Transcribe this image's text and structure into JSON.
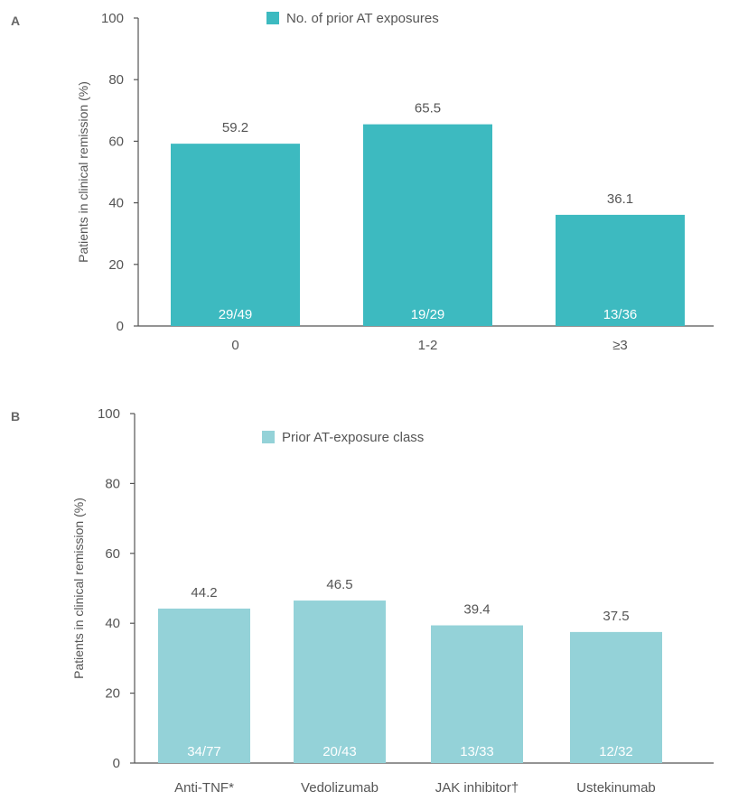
{
  "chart_data": [
    {
      "type": "bar",
      "panel_label": "A",
      "legend": "No. of prior AT exposures",
      "legend_placement": "top",
      "color": "#3dbac0",
      "ylabel": "Patients in clinical remission (%)",
      "xlabel": "",
      "ylim": [
        0,
        100
      ],
      "yticks": [
        0,
        20,
        40,
        60,
        80,
        100
      ],
      "categories": [
        "0",
        "1-2",
        "≥3"
      ],
      "values": [
        59.2,
        65.5,
        36.1
      ],
      "value_labels": [
        "59.2",
        "65.5",
        "36.1"
      ],
      "counts": [
        "29/49",
        "19/29",
        "13/36"
      ],
      "grid": false
    },
    {
      "type": "bar",
      "panel_label": "B",
      "legend": "Prior AT-exposure class",
      "legend_placement": "top",
      "color": "#94d2d8",
      "ylabel": "Patients in clinical remission (%)",
      "xlabel": "",
      "ylim": [
        0,
        100
      ],
      "yticks": [
        0,
        20,
        40,
        60,
        80,
        100
      ],
      "categories": [
        "Anti-TNF*",
        "Vedolizumab",
        "JAK inhibitor†",
        "Ustekinumab"
      ],
      "values": [
        44.2,
        46.5,
        39.4,
        37.5
      ],
      "value_labels": [
        "44.2",
        "46.5",
        "39.4",
        "37.5"
      ],
      "counts": [
        "34/77",
        "20/43",
        "13/33",
        "12/32"
      ],
      "grid": false
    }
  ]
}
